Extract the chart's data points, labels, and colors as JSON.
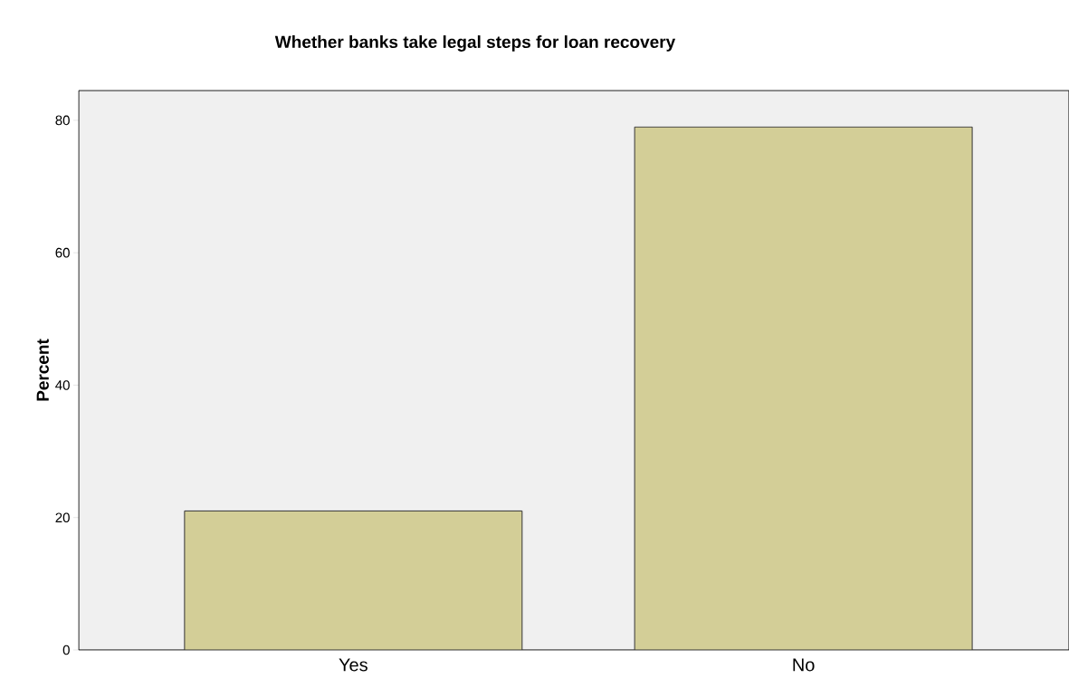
{
  "chart_data": {
    "type": "bar",
    "title": "Whether banks take legal steps for loan recovery",
    "ylabel": "Percent",
    "categories": [
      "Yes",
      "No"
    ],
    "values": [
      21,
      79
    ],
    "color": "#d3ce97",
    "ylim": [
      0,
      84.5
    ],
    "yticks": [
      0,
      20,
      40,
      60,
      80
    ],
    "grid": false
  }
}
